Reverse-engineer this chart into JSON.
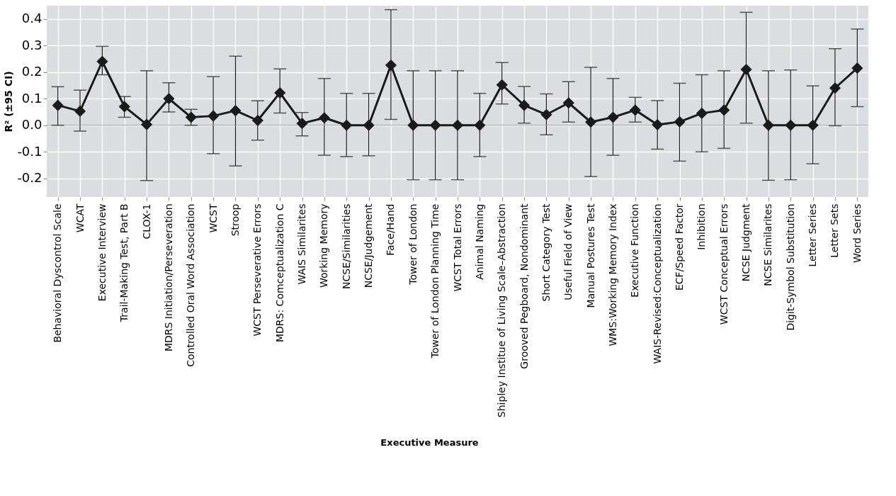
{
  "chart_data": {
    "type": "line",
    "xlabel": "Executive Measure",
    "ylabel": "R² (±95 CI)",
    "categories": [
      "Behavioral Dyscontrol Scale",
      "WCAT",
      "Executive Interview",
      "Trail-Making Test, Part B",
      "CLOX-1",
      "MDRS Initiation/Perseveration",
      "Controlled Oral Word Association",
      "WCST",
      "Stroop",
      "WCST Perseverative Errors",
      "MDRS: Comceptualization C",
      "WAIS Similarites",
      "Working Memory",
      "NCSE/Similarities",
      "NCSE/Judgement",
      "Face/Hand",
      "Tower of London",
      "Tower of London Planning Time",
      "WCST Total Errors",
      "Animal Naming",
      "Shipley Institue of Living Scale–Abstraction",
      "Grooved Pegboard, Nondominant",
      "Short Category Test",
      "Useful Field of View",
      "Manual Postures Test",
      "WMS:Working Memory Index",
      "Executive Function",
      "WAIS-Revised:Conceptualization",
      "ECF/Speed Factor",
      "Inhibition",
      "WCST Conceptual Errors",
      "NCSE Judgment",
      "NCSE Similarites",
      "Digit-Symbol Substitution",
      "Letter Series",
      "Letter Sets",
      "Word Series"
    ],
    "series": [
      {
        "color": "#1a1a1a",
        "values": [
          0.075,
          0.053,
          0.24,
          0.07,
          0.003,
          0.1,
          0.03,
          0.035,
          0.055,
          0.018,
          0.122,
          0.007,
          0.028,
          0.0,
          0.0,
          0.226,
          0.0,
          0.0,
          0.0,
          0.0,
          0.152,
          0.075,
          0.04,
          0.084,
          0.012,
          0.03,
          0.057,
          0.002,
          0.013,
          0.045,
          0.057,
          0.21,
          0.0,
          0.0,
          0.0,
          0.14,
          0.215
        ],
        "errors": [
          [
            0.0,
            0.145
          ],
          [
            -0.022,
            0.132
          ],
          [
            0.19,
            0.297
          ],
          [
            0.03,
            0.108
          ],
          [
            -0.208,
            0.205
          ],
          [
            0.05,
            0.16
          ],
          [
            0.0,
            0.06
          ],
          [
            -0.107,
            0.183
          ],
          [
            -0.153,
            0.26
          ],
          [
            -0.056,
            0.092
          ],
          [
            0.046,
            0.212
          ],
          [
            -0.04,
            0.048
          ],
          [
            -0.113,
            0.176
          ],
          [
            -0.118,
            0.12
          ],
          [
            -0.115,
            0.12
          ],
          [
            0.022,
            0.435
          ],
          [
            -0.205,
            0.205
          ],
          [
            -0.205,
            0.205
          ],
          [
            -0.205,
            0.205
          ],
          [
            -0.118,
            0.12
          ],
          [
            0.08,
            0.236
          ],
          [
            0.008,
            0.146
          ],
          [
            -0.036,
            0.118
          ],
          [
            0.012,
            0.164
          ],
          [
            -0.193,
            0.218
          ],
          [
            -0.113,
            0.176
          ],
          [
            0.012,
            0.105
          ],
          [
            -0.09,
            0.093
          ],
          [
            -0.135,
            0.158
          ],
          [
            -0.1,
            0.19
          ],
          [
            -0.087,
            0.205
          ],
          [
            0.008,
            0.425
          ],
          [
            -0.207,
            0.205
          ],
          [
            -0.205,
            0.208
          ],
          [
            -0.145,
            0.148
          ],
          [
            -0.002,
            0.288
          ],
          [
            0.07,
            0.362
          ]
        ]
      }
    ],
    "ylim": [
      -0.27,
      0.45
    ],
    "yticks": [
      -0.2,
      -0.1,
      {
        "value": 0.0,
        "label": "0.0"
      },
      0.1,
      0.2,
      0.3,
      0.4
    ],
    "ref_lines": [
      {
        "axis": "y",
        "value": 0.0,
        "color": "#9a9a9a"
      }
    ],
    "grid": true,
    "marker": "diamond",
    "line_style": "solid"
  }
}
